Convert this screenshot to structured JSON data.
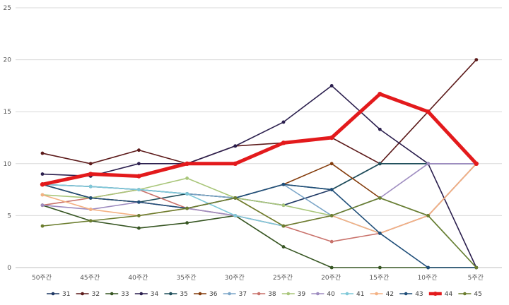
{
  "chart_data": {
    "type": "line",
    "categories": [
      "50주간",
      "45주간",
      "40주간",
      "35주간",
      "30주간",
      "25주간",
      "20주간",
      "15주간",
      "10주간",
      "5주간"
    ],
    "ylim": [
      0,
      25
    ],
    "yticks": [
      "0",
      "5",
      "10",
      "15",
      "20",
      "25"
    ],
    "grid": true,
    "legend": "bottom",
    "series": [
      {
        "name": "31",
        "color": "#1f3864",
        "values": [
          8.0,
          7.8,
          7.5,
          7.1,
          6.7,
          6.0,
          7.5,
          10.0,
          10.0,
          10.0
        ]
      },
      {
        "name": "32",
        "color": "#5c1a1a",
        "values": [
          11.0,
          10.0,
          11.3,
          10.0,
          11.7,
          12.0,
          12.5,
          10.0,
          15.0,
          20.0
        ]
      },
      {
        "name": "33",
        "color": "#375623",
        "values": [
          6.0,
          4.5,
          3.8,
          4.3,
          5.0,
          2.0,
          0.0,
          0.0,
          0.0,
          0.0
        ]
      },
      {
        "name": "34",
        "color": "#2b1f4e",
        "values": [
          9.0,
          8.8,
          10.0,
          10.0,
          11.7,
          14.0,
          17.5,
          13.3,
          10.0,
          0.0
        ]
      },
      {
        "name": "35",
        "color": "#1f4e5a",
        "values": [
          8.0,
          6.7,
          6.3,
          7.1,
          6.7,
          8.0,
          7.5,
          10.0,
          10.0,
          10.0
        ]
      },
      {
        "name": "36",
        "color": "#843c0c",
        "values": [
          8.0,
          6.7,
          6.3,
          5.7,
          6.7,
          8.0,
          10.0,
          6.7,
          5.0,
          10.0
        ]
      },
      {
        "name": "37",
        "color": "#7ca6c8",
        "values": [
          8.0,
          7.8,
          7.5,
          7.1,
          6.7,
          8.0,
          5.0,
          3.3,
          5.0,
          10.0
        ]
      },
      {
        "name": "38",
        "color": "#c9726b",
        "values": [
          6.0,
          6.7,
          7.5,
          5.7,
          5.0,
          4.0,
          2.5,
          3.3,
          5.0,
          10.0
        ]
      },
      {
        "name": "39",
        "color": "#a9c67a",
        "values": [
          7.0,
          6.7,
          7.5,
          8.6,
          6.7,
          6.0,
          5.0,
          6.7,
          5.0,
          0.0
        ]
      },
      {
        "name": "40",
        "color": "#9e8cc0",
        "values": [
          6.0,
          5.6,
          6.3,
          5.7,
          5.0,
          4.0,
          5.0,
          6.7,
          10.0,
          10.0
        ]
      },
      {
        "name": "41",
        "color": "#7fc8d8",
        "values": [
          8.0,
          7.8,
          7.5,
          7.1,
          5.0,
          4.0,
          5.0,
          6.7,
          5.0,
          0.0
        ]
      },
      {
        "name": "42",
        "color": "#f4b183",
        "values": [
          7.0,
          5.6,
          5.0,
          5.7,
          6.7,
          4.0,
          5.0,
          3.3,
          5.0,
          10.0
        ]
      },
      {
        "name": "43",
        "color": "#1f4e79",
        "values": [
          8.0,
          6.7,
          6.3,
          5.7,
          6.7,
          8.0,
          7.5,
          3.3,
          0.0,
          0.0
        ]
      },
      {
        "name": "44",
        "color": "#e31a1c",
        "values": [
          8.0,
          9.0,
          8.8,
          10.0,
          10.0,
          12.0,
          12.5,
          16.7,
          15.0,
          10.0
        ]
      },
      {
        "name": "45",
        "color": "#6b7d2e",
        "values": [
          4.0,
          4.5,
          5.0,
          5.7,
          6.7,
          4.0,
          5.0,
          6.7,
          5.0,
          0.0
        ]
      }
    ]
  }
}
